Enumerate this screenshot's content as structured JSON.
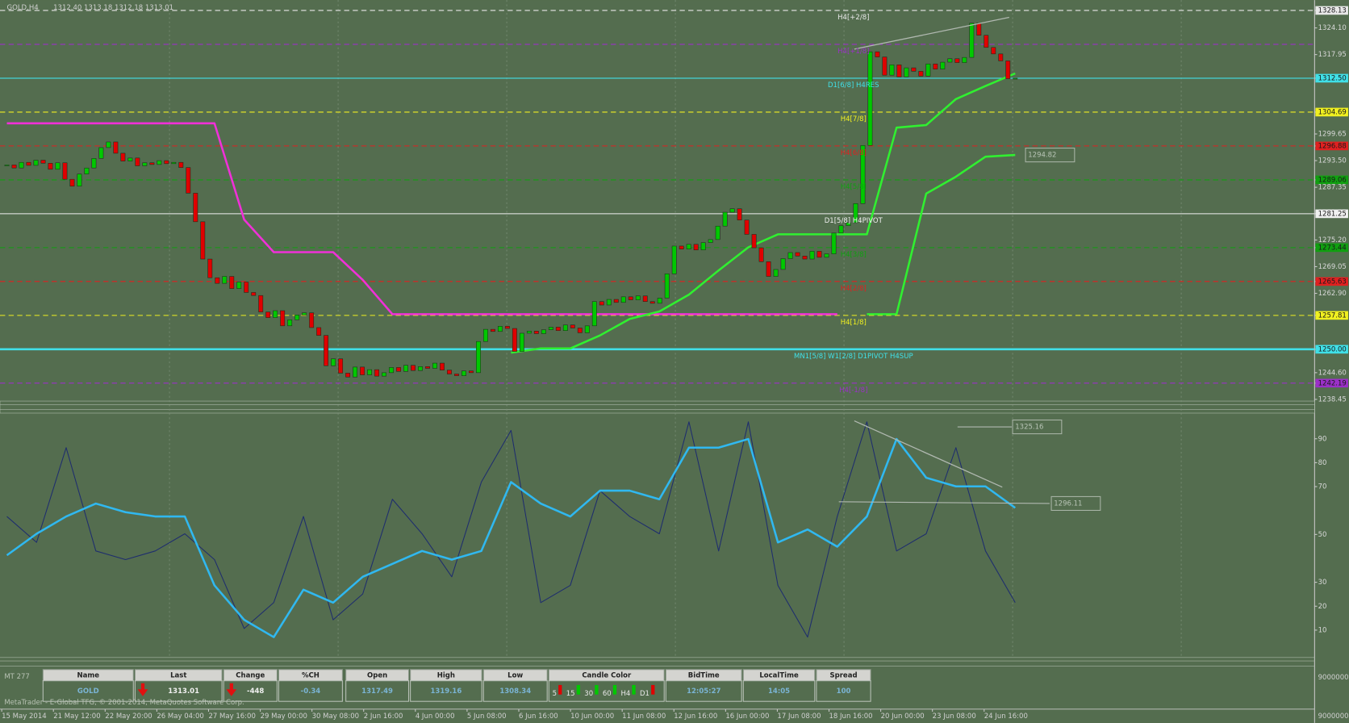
{
  "header": {
    "symbol": "GOLD,H4",
    "quote": "1312.40 1313.18 1312.18 1313.01"
  },
  "price_chart": {
    "type": "candlestick",
    "closes": [
      1292.5,
      1291.8,
      1293.1,
      1292.4,
      1293.6,
      1292.9,
      1291.5,
      1293.0,
      1289.2,
      1287.6,
      1290.4,
      1291.8,
      1294.0,
      1296.5,
      1297.8,
      1295.2,
      1293.4,
      1294.1,
      1292.3,
      1293.0,
      1292.6,
      1293.5,
      1292.8,
      1293.1,
      1291.9,
      1286.0,
      1279.4,
      1270.8,
      1266.5,
      1265.2,
      1266.8,
      1264.0,
      1265.5,
      1263.1,
      1262.4,
      1258.6,
      1257.3,
      1258.9,
      1255.4,
      1256.8,
      1257.9,
      1258.4,
      1255.0,
      1253.2,
      1246.2,
      1247.8,
      1244.5,
      1243.6,
      1245.9,
      1244.1,
      1245.3,
      1243.8,
      1244.6,
      1245.8,
      1244.9,
      1246.3,
      1245.1,
      1246.0,
      1245.6,
      1246.8,
      1245.2,
      1244.3,
      1243.9,
      1245.0,
      1244.6,
      1251.8,
      1254.6,
      1254.1,
      1255.3,
      1254.8,
      1249.5,
      1253.7,
      1254.2,
      1253.6,
      1254.5,
      1255.1,
      1254.3,
      1255.6,
      1254.9,
      1253.8,
      1255.4,
      1261.0,
      1260.2,
      1261.5,
      1260.8,
      1262.1,
      1261.4,
      1262.3,
      1261.0,
      1260.6,
      1261.8,
      1267.4,
      1273.8,
      1273.1,
      1274.2,
      1272.9,
      1274.6,
      1275.3,
      1278.4,
      1281.6,
      1282.4,
      1279.8,
      1276.5,
      1273.4,
      1270.2,
      1266.8,
      1268.4,
      1270.9,
      1272.3,
      1271.5,
      1270.8,
      1272.6,
      1271.2,
      1272.0,
      1276.8,
      1278.5,
      1279.2,
      1283.6,
      1297.0,
      1318.6,
      1317.4,
      1313.2,
      1315.6,
      1312.8,
      1314.9,
      1314.1,
      1313.0,
      1315.8,
      1314.6,
      1316.2,
      1317.0,
      1316.1,
      1317.3,
      1325.2,
      1322.4,
      1319.6,
      1318.1,
      1316.5,
      1312.4,
      1312.5
    ],
    "up_color": "#00c800",
    "down_color": "#e00000",
    "ylim": [
      1238.45,
      1328.13
    ],
    "yticks": [
      1328.13,
      {
        "value": 1324.1,
        "label": "1324.10"
      },
      1317.95,
      {
        "value": 1312.5,
        "label": "1312.50"
      },
      1304.69,
      1299.65,
      1296.88,
      {
        "value": 1293.5,
        "label": "1293.50"
      },
      1289.06,
      1287.35,
      1281.25,
      {
        "value": 1275.2,
        "label": "1275.20"
      },
      1273.44,
      1269.05,
      1265.63,
      {
        "value": 1262.9,
        "label": "1262.90"
      },
      1257.81,
      {
        "value": 1250,
        "label": "1250.00"
      },
      {
        "value": 1244.6,
        "label": "1244.60"
      },
      1242.19,
      1238.45
    ],
    "levels": [
      {
        "value": 1328.13,
        "label": "H4[+2/8]",
        "color": "#e8e8e8",
        "style": "dash"
      },
      {
        "value": 1320.31,
        "label": "H4[+1/8]",
        "color": "#9b30c8",
        "style": "dash"
      },
      {
        "value": 1312.5,
        "label": "D1[6/8] H4RES",
        "color": "#40e0e8",
        "style": "solid"
      },
      {
        "value": 1304.69,
        "label": "H4[7/8]",
        "color": "#f0f020",
        "style": "dash"
      },
      {
        "value": 1296.88,
        "label": "H4[6/8]",
        "color": "#e02020",
        "style": "dash"
      },
      {
        "value": 1289.06,
        "label": "H4[5/8]",
        "color": "#10a010",
        "style": "dash"
      },
      {
        "value": 1281.25,
        "label": "D1[5/8] H4PIVOT",
        "color": "#f0f0f0",
        "style": "solid"
      },
      {
        "value": 1273.44,
        "label": "H4[3/8]",
        "color": "#10a010",
        "style": "dash"
      },
      {
        "value": 1265.63,
        "label": "H4[2/8]",
        "color": "#e02020",
        "style": "dash"
      },
      {
        "value": 1257.81,
        "label": "H4[1/8]",
        "color": "#f0f020",
        "style": "dash"
      },
      {
        "value": 1250,
        "label": "MN1[5/8] W1[2/8] D1PIVOT H4SUP",
        "color": "#40e0e8",
        "style": "thick"
      },
      {
        "value": 1242.19,
        "label": "H4[-1/8]",
        "color": "#9b30c8",
        "style": "dash"
      }
    ],
    "stops": [
      {
        "color": "#f030d8",
        "values": [
          1302.1,
          1302.1,
          1302.1,
          1302.1,
          1302.1,
          1302.1,
          1302.1,
          1302.1,
          1279.9,
          1272.4,
          1272.4,
          1272.4,
          1266.0,
          1258.1,
          1258.1,
          1258.1,
          1258.1,
          1258.1,
          1258.1,
          1258.1,
          1258.1,
          1258.1,
          1258.1,
          1258.1,
          1258.1,
          1258.1,
          1258.1,
          1258.1,
          1258.1,
          null,
          null,
          null,
          null,
          null,
          null
        ]
      },
      {
        "color": "#30f030",
        "values": [
          null,
          null,
          null,
          null,
          null,
          null,
          null,
          null,
          null,
          null,
          null,
          null,
          null,
          null,
          null,
          null,
          null,
          1249.2,
          1250.2,
          1250.2,
          1253.2,
          1257.0,
          1258.7,
          1262.6,
          1268.2,
          1273.5,
          1276.5,
          1276.5,
          1276.5,
          1276.5,
          1301.1,
          1301.7,
          1307.7,
          1310.7,
          1313.6
        ]
      },
      {
        "color": "#30f030",
        "values": [
          null,
          null,
          null,
          null,
          null,
          null,
          null,
          null,
          null,
          null,
          null,
          null,
          null,
          null,
          null,
          null,
          null,
          null,
          null,
          null,
          null,
          null,
          null,
          null,
          null,
          null,
          null,
          null,
          null,
          1258.1,
          1258.1,
          1285.9,
          1289.8,
          1294.4,
          1294.8
        ]
      }
    ]
  },
  "annotations": [
    "1294.82",
    "1325.16",
    "1296.11"
  ],
  "oscillator": {
    "type": "line",
    "ylim": [
      0,
      100
    ],
    "yticks": [
      10,
      20,
      30,
      50,
      70,
      80,
      90
    ],
    "series": [
      {
        "color": "#1e2d6e",
        "values": [
          57.5,
          46.7,
          86.3,
          43.1,
          39.5,
          43.1,
          50.3,
          39.5,
          10.7,
          21.5,
          57.5,
          14.3,
          25.1,
          64.7,
          50.3,
          32.3,
          71.9,
          93.5,
          21.5,
          28.7,
          68.3,
          57.5,
          50.3,
          97.1,
          43.1,
          97.1,
          28.7,
          7.1,
          57.5,
          97.1,
          43.1,
          50.3,
          86.3,
          43.1,
          21.5
        ]
      },
      {
        "color": "#30b8f0",
        "values": [
          41.3,
          50.3,
          57.5,
          62.9,
          59.3,
          57.5,
          57.5,
          28.7,
          14.3,
          7.1,
          26.9,
          21.5,
          32.3,
          37.7,
          43.1,
          39.5,
          43.1,
          71.9,
          62.9,
          57.5,
          68.3,
          68.3,
          64.7,
          86.3,
          86.3,
          89.9,
          46.7,
          52.1,
          44.9,
          57.5,
          89.9,
          73.7,
          70.1,
          70.1,
          61.1
        ]
      }
    ]
  },
  "time_axis": [
    "15 May 2014",
    "21 May 12:00",
    "22 May 20:00",
    "26 May 04:00",
    "27 May 16:00",
    "29 May 00:00",
    "30 May 08:00",
    "2 Jun 16:00",
    "4 Jun 00:00",
    "5 Jun 08:00",
    "6 Jun 16:00",
    "10 Jun 00:00",
    "11 Jun 08:00",
    "12 Jun 16:00",
    "16 Jun 00:00",
    "17 Jun 08:00",
    "18 Jun 16:00",
    "20 Jun 00:00",
    "23 Jun 08:00",
    "24 Jun 16:00"
  ],
  "footer": {
    "build": "MT 277",
    "copyright": "MetaTrader - E-Global TFG, © 2001-2014, MetaQuotes Software Corp.",
    "scale": [
      "9000000",
      "9000000"
    ]
  },
  "table": {
    "columns": [
      {
        "header": "Name",
        "value": "GOLD"
      },
      {
        "header": "Last",
        "value": "1313.01"
      },
      {
        "header": "Change",
        "value": "-448"
      },
      {
        "header": "%CH",
        "value": "-0.34"
      },
      {
        "header": "Open",
        "value": "1317.49"
      },
      {
        "header": "High",
        "value": "1319.16"
      },
      {
        "header": "Low",
        "value": "1308.34"
      },
      {
        "header": "Candle Color",
        "value": [
          "5",
          "15",
          "30",
          "60",
          "H4",
          "D1"
        ]
      },
      {
        "header": "BidTime",
        "value": "12:05:27"
      },
      {
        "header": "LocalTime",
        "value": "14:05"
      },
      {
        "header": "Spread",
        "value": "100"
      }
    ]
  }
}
